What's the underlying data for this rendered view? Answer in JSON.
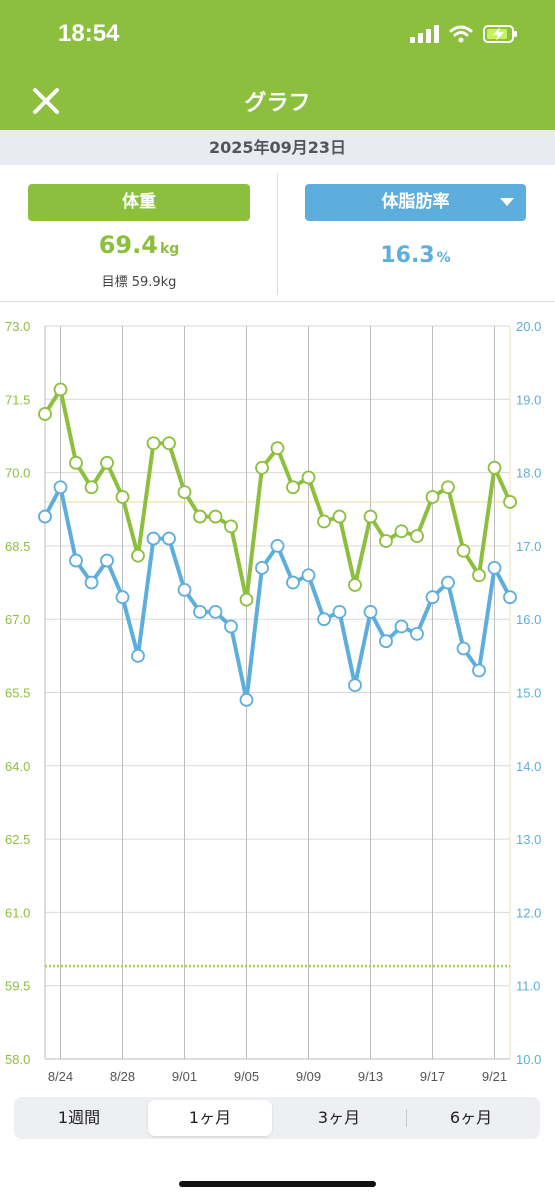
{
  "status_bar": {
    "time": "18:54"
  },
  "header": {
    "title": "グラフ"
  },
  "date": "2025年09月23日",
  "metrics": {
    "weight": {
      "label": "体重",
      "value": "69.4",
      "unit": "kg",
      "target": "目標 59.9kg"
    },
    "body_fat": {
      "label": "体脂肪率",
      "value": "16.3",
      "unit": "%"
    }
  },
  "period_tabs": {
    "tabs": [
      "1週間",
      "1ヶ月",
      "3ヶ月",
      "6ヶ月"
    ],
    "active_index": 1
  },
  "colors": {
    "weight": "#8dbf3e",
    "body_fat": "#5daedc",
    "header": "#8dbf3e"
  },
  "chart_data": {
    "type": "line",
    "x_tick_labels": [
      "8/24",
      "8/28",
      "9/01",
      "9/05",
      "9/09",
      "9/13",
      "9/17",
      "9/21"
    ],
    "x": [
      "8/23",
      "8/24",
      "8/25",
      "8/26",
      "8/27",
      "8/28",
      "8/29",
      "8/30",
      "8/31",
      "9/01",
      "9/02",
      "9/03",
      "9/04",
      "9/05",
      "9/06",
      "9/07",
      "9/08",
      "9/09",
      "9/10",
      "9/11",
      "9/12",
      "9/13",
      "9/14",
      "9/15",
      "9/16",
      "9/17",
      "9/18",
      "9/19",
      "9/20",
      "9/21",
      "9/22"
    ],
    "series": [
      {
        "axis": "left",
        "values": [
          71.2,
          71.7,
          70.2,
          69.7,
          70.2,
          69.5,
          68.3,
          70.6,
          70.6,
          69.6,
          69.1,
          69.1,
          68.9,
          67.4,
          70.1,
          70.5,
          69.7,
          69.9,
          69.0,
          69.1,
          67.7,
          69.1,
          68.6,
          68.8,
          68.7,
          69.5,
          69.7,
          68.4,
          67.9,
          70.1,
          69.4
        ]
      },
      {
        "axis": "right",
        "values": [
          17.4,
          17.8,
          16.8,
          16.5,
          16.8,
          16.3,
          15.5,
          17.1,
          17.1,
          16.4,
          16.1,
          16.1,
          15.9,
          14.9,
          16.7,
          17.0,
          16.5,
          16.6,
          16.0,
          16.1,
          15.1,
          16.1,
          15.7,
          15.9,
          15.8,
          16.3,
          16.5,
          15.6,
          15.3,
          16.7,
          16.3
        ]
      }
    ],
    "y_left": {
      "ylim": [
        58.0,
        73.0
      ],
      "ticks": [
        "73.0",
        "71.5",
        "70.0",
        "68.5",
        "67.0",
        "65.5",
        "64.0",
        "62.5",
        "61.0",
        "59.5",
        "58.0"
      ]
    },
    "y_right": {
      "ylim": [
        10.0,
        20.0
      ],
      "ticks": [
        "20.0",
        "19.0",
        "18.0",
        "17.0",
        "16.0",
        "15.0",
        "14.0",
        "13.0",
        "12.0",
        "11.0",
        "10.0"
      ]
    },
    "reference_lines": [
      {
        "axis": "left",
        "value": 69.4,
        "style": "solid"
      },
      {
        "axis": "left",
        "value": 59.9,
        "style": "dotted"
      }
    ],
    "grid": true
  }
}
